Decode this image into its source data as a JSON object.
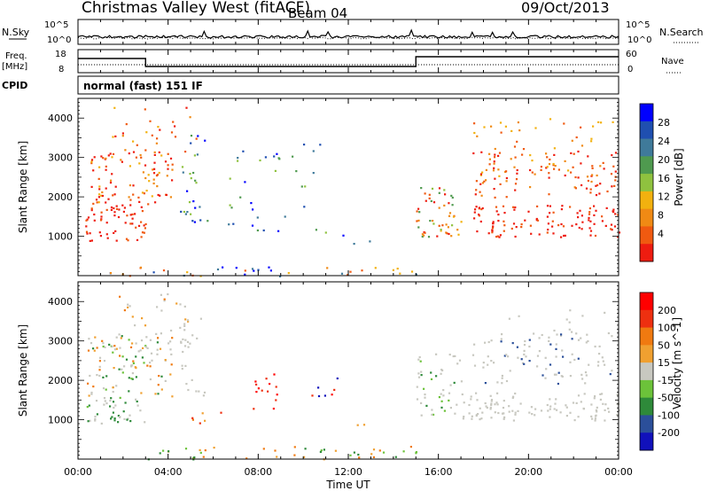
{
  "header": {
    "title": "Christmas Valley West (fitACF)",
    "beam": "Beam 04",
    "date": "09/Oct/2013"
  },
  "noise_panel": {
    "left_label": "N.Sky",
    "right_label": "N.Search",
    "left_ticks": [
      "10^5",
      "10^0"
    ],
    "right_ticks": [
      "10^5",
      "10^0"
    ]
  },
  "freq_panel": {
    "left_label_1": "Freq.",
    "left_label_2": "[MHz]",
    "right_label": "Nave",
    "left_ticks": [
      "18",
      "8"
    ],
    "right_ticks": [
      "60",
      "0"
    ]
  },
  "cpid": {
    "label": "CPID",
    "value": "normal (fast) 151 IF"
  },
  "x_axis": {
    "label": "Time UT",
    "ticks": [
      "00:00",
      "04:00",
      "08:00",
      "12:00",
      "16:00",
      "20:00",
      "00:00"
    ]
  },
  "colors": {
    "power_scale": [
      "#0000ff",
      "#1f4fb0",
      "#3f7a9a",
      "#4f9a4f",
      "#8fc23f",
      "#f2b10f",
      "#f08a14",
      "#f05a10",
      "#ee1c10"
    ],
    "velocity_scale": [
      "#1111bb",
      "#2b4f9a",
      "#2e8a3a",
      "#6cc23a",
      "#c8c8c0",
      "#f0a030",
      "#f07a10",
      "#ee3010",
      "#ff0000"
    ]
  },
  "chart_data": [
    {
      "type": "heatmap",
      "title": "Power",
      "ylabel": "Slant Range [km]",
      "xlabel": "",
      "x_range": [
        "00:00",
        "24:00"
      ],
      "ylim": [
        0,
        4500
      ],
      "y_ticks": [
        1000,
        2000,
        3000,
        4000
      ],
      "colorbar": {
        "label": "Power [dB]",
        "ticks": [
          28,
          24,
          20,
          16,
          12,
          8,
          4
        ],
        "range": [
          0,
          30
        ]
      }
    },
    {
      "type": "heatmap",
      "title": "Velocity",
      "ylabel": "Slant Range [km]",
      "xlabel": "Time UT",
      "x_range": [
        "00:00",
        "24:00"
      ],
      "ylim": [
        0,
        4500
      ],
      "y_ticks": [
        1000,
        2000,
        3000,
        4000
      ],
      "colorbar": {
        "label": "Velocity [m s^-1]",
        "ticks": [
          200,
          100,
          50,
          15,
          -15,
          -50,
          -100,
          -200
        ],
        "range": [
          -250,
          250
        ]
      }
    }
  ]
}
